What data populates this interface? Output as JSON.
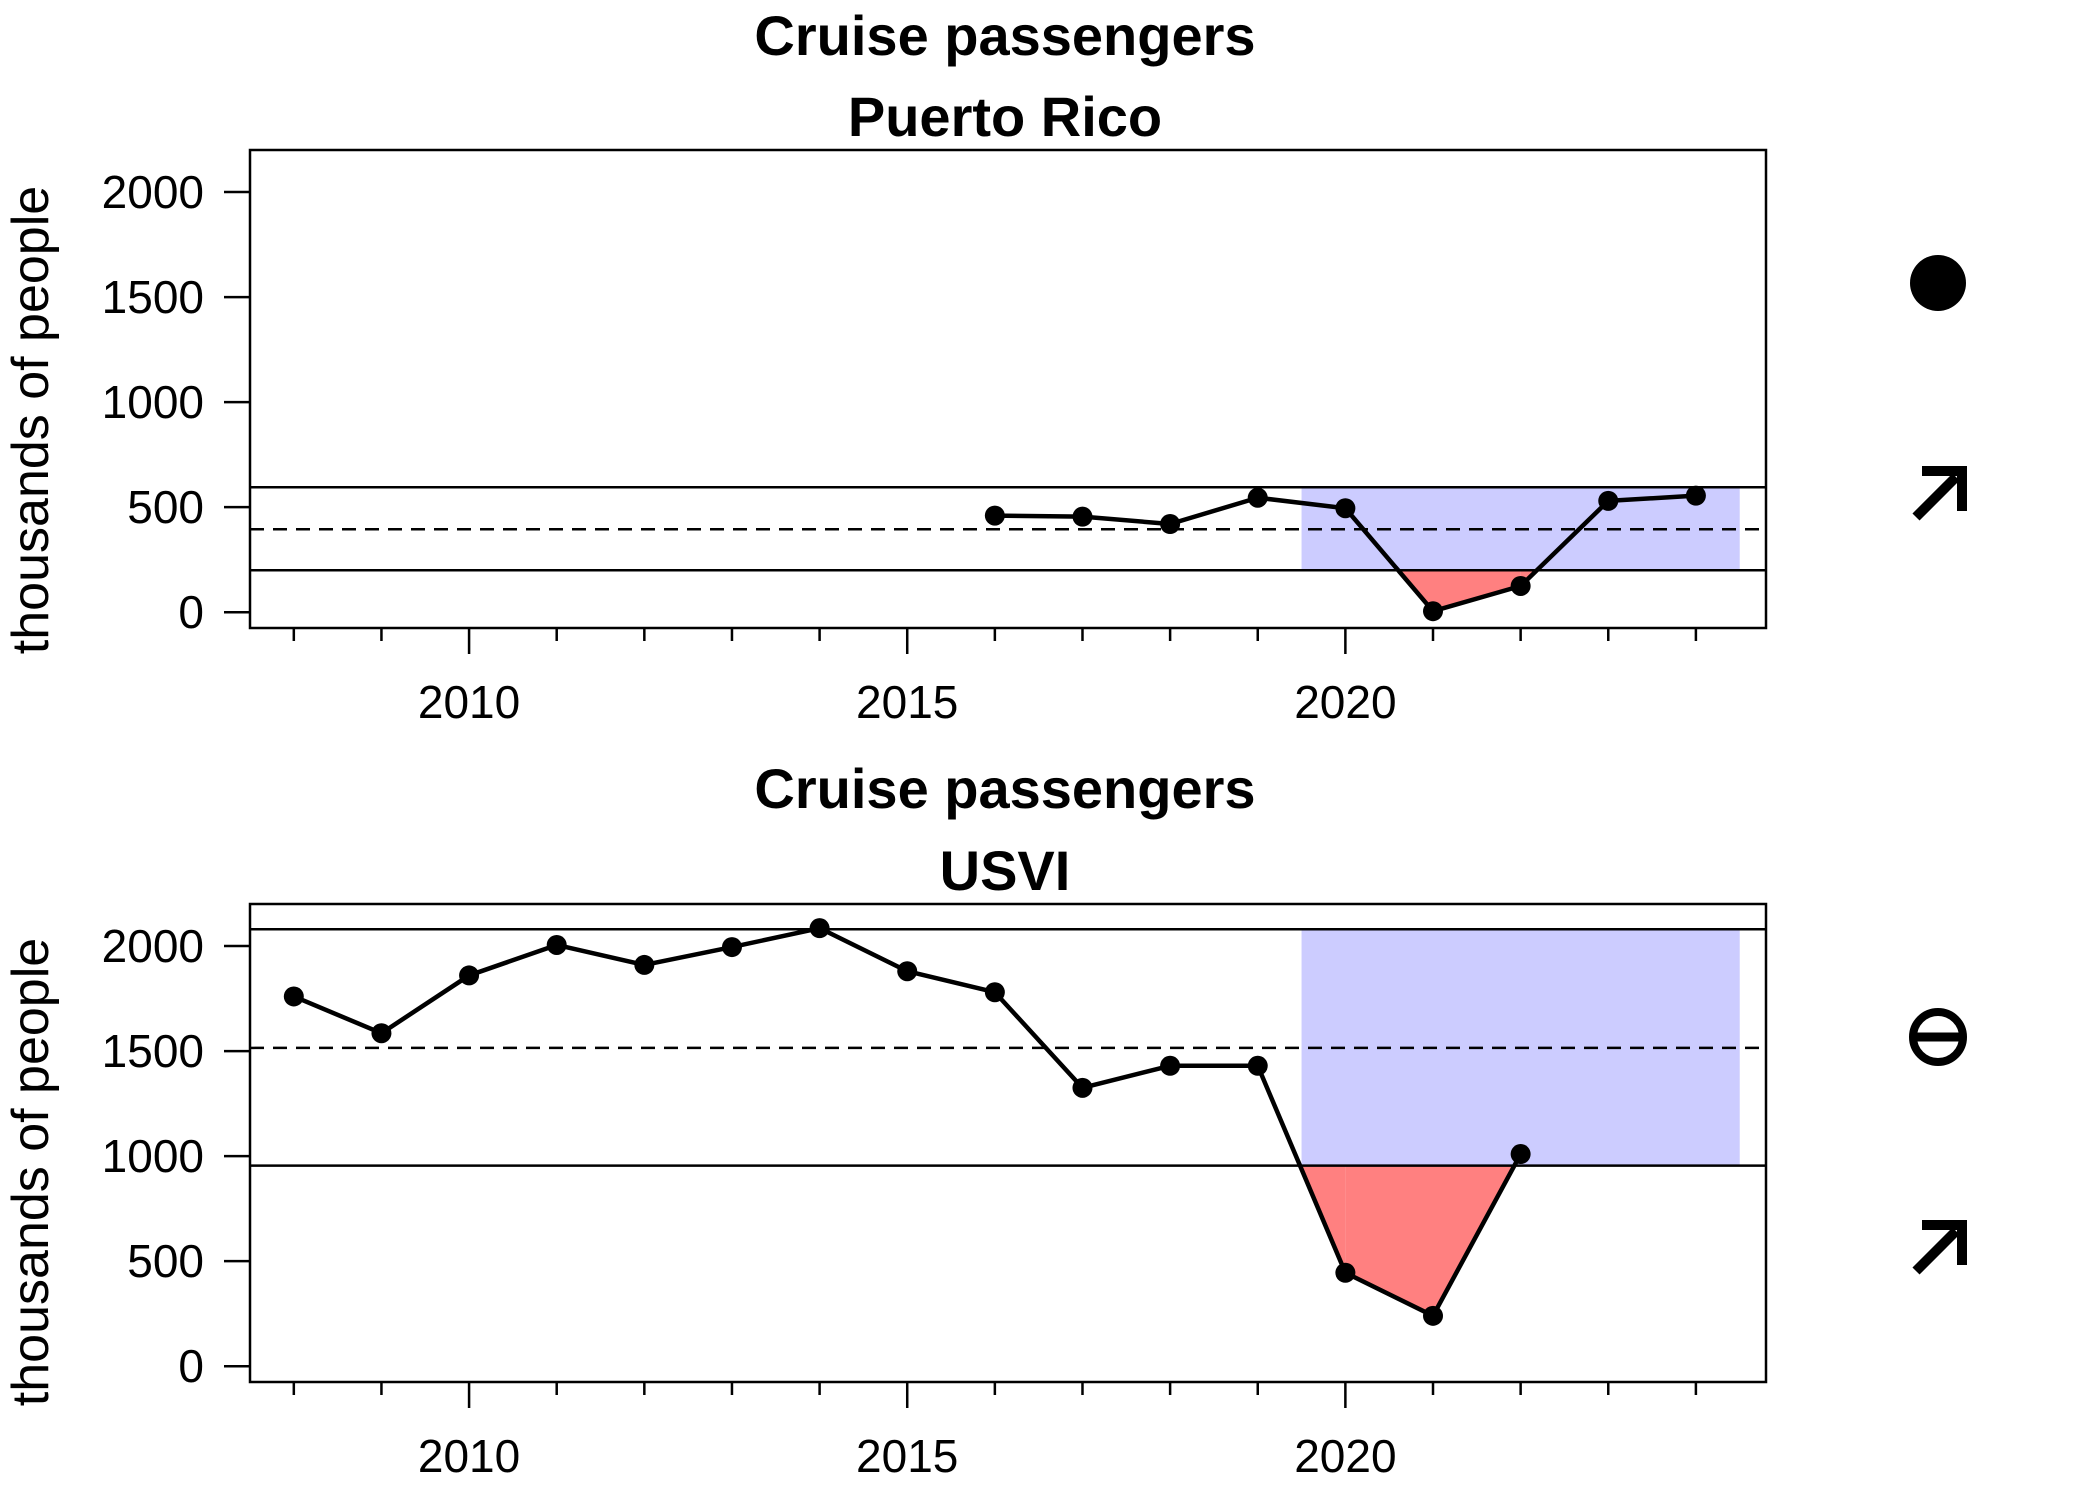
{
  "chart_data": [
    {
      "type": "line",
      "title": "Cruise passengers",
      "subtitle": "Puerto Rico",
      "xlabel": "",
      "ylabel": "thousands of people",
      "xlim": [
        2007.5,
        2024.8
      ],
      "ylim": [
        -75,
        2200
      ],
      "xticks": [
        2010,
        2015,
        2020
      ],
      "yticks": [
        0,
        500,
        1000,
        1500,
        2000
      ],
      "x": [
        2016,
        2017,
        2018,
        2019,
        2020,
        2021,
        2022,
        2023,
        2024
      ],
      "y": [
        460,
        455,
        420,
        545,
        495,
        5,
        125,
        530,
        555
      ],
      "mean": 395,
      "upper_sd": 595,
      "lower_sd": 200,
      "shade_start": 2019.5,
      "shade_end": 2024.5,
      "trend_symbol": "circle-filled",
      "trend_color": "#000000",
      "direction_symbol": "arrow-up-right",
      "shade_color": "#ccccff",
      "below_color": "#ff8080"
    },
    {
      "type": "line",
      "title": "Cruise passengers",
      "subtitle": "USVI",
      "xlabel": "",
      "ylabel": "thousands of people",
      "xlim": [
        2007.5,
        2024.8
      ],
      "ylim": [
        -75,
        2200
      ],
      "xticks": [
        2010,
        2015,
        2020
      ],
      "yticks": [
        0,
        500,
        1000,
        1500,
        2000
      ],
      "x": [
        2008,
        2009,
        2010,
        2011,
        2012,
        2013,
        2014,
        2015,
        2016,
        2017,
        2018,
        2019,
        2020,
        2021,
        2022
      ],
      "y": [
        1760,
        1585,
        1860,
        2005,
        1910,
        1995,
        2085,
        1880,
        1780,
        1325,
        1430,
        1430,
        445,
        240,
        1010
      ],
      "mean": 1515,
      "upper_sd": 2080,
      "lower_sd": 955,
      "shade_start": 2019.5,
      "shade_end": 2024.5,
      "trend_symbol": "circle-minus",
      "trend_color": "#000000",
      "direction_symbol": "arrow-up-right",
      "shade_color": "#ccccff",
      "below_color": "#ff8080"
    }
  ]
}
